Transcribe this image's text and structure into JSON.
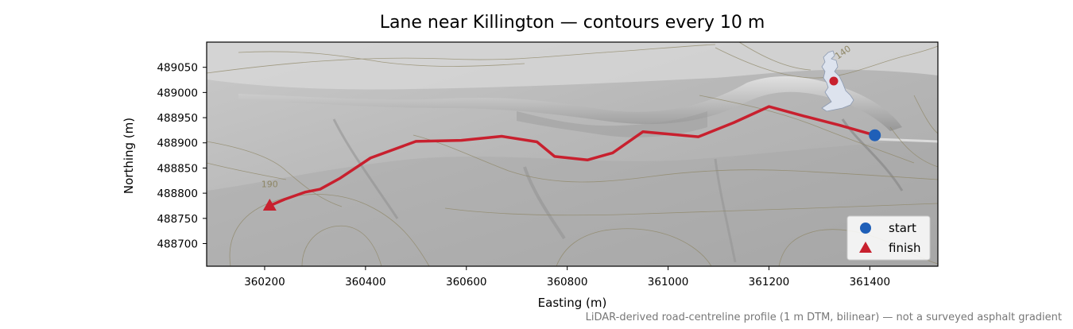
{
  "title": "Lane near Killington — contours every 10 m",
  "xlabel": "Easting (m)",
  "ylabel": "Northing (m)",
  "footnote": "LiDAR-derived road-centreline profile (1 m DTM, bilinear) — not a surveyed asphalt gradient",
  "legend": {
    "placement": "lower-right",
    "start": "start",
    "finish": "finish"
  },
  "colors": {
    "route": "#c8202e",
    "start": "#1f5fb8",
    "finish": "#c8202e",
    "inset_land": "#dde3ee",
    "inset_marker": "#c8202e"
  },
  "chart_data": {
    "type": "line",
    "xlim": [
      360085,
      361535
    ],
    "ylim": [
      488655,
      489100
    ],
    "x_ticks": [
      360200,
      360400,
      360600,
      360800,
      361000,
      361200,
      361400
    ],
    "y_ticks": [
      488700,
      488750,
      488800,
      488850,
      488900,
      488950,
      489000,
      489050
    ],
    "grid": false,
    "route": {
      "x": [
        360210,
        360240,
        360280,
        360310,
        360350,
        360410,
        360500,
        360590,
        360670,
        360740,
        360775,
        360840,
        360890,
        360950,
        361060,
        361130,
        361200,
        361270,
        361340,
        361410
      ],
      "y": [
        488775,
        488788,
        488802,
        488808,
        488830,
        488870,
        488903,
        488905,
        488913,
        488902,
        488873,
        488866,
        488880,
        488922,
        488912,
        488940,
        488972,
        488953,
        488935,
        488915
      ]
    },
    "start": {
      "x": 361410,
      "y": 488915
    },
    "finish": {
      "x": 360210,
      "y": 488775
    },
    "contour_labels": [
      {
        "text": "190",
        "x": 360210,
        "y": 488812
      },
      {
        "text": "140",
        "x": 361350,
        "y": 489075
      }
    ]
  }
}
